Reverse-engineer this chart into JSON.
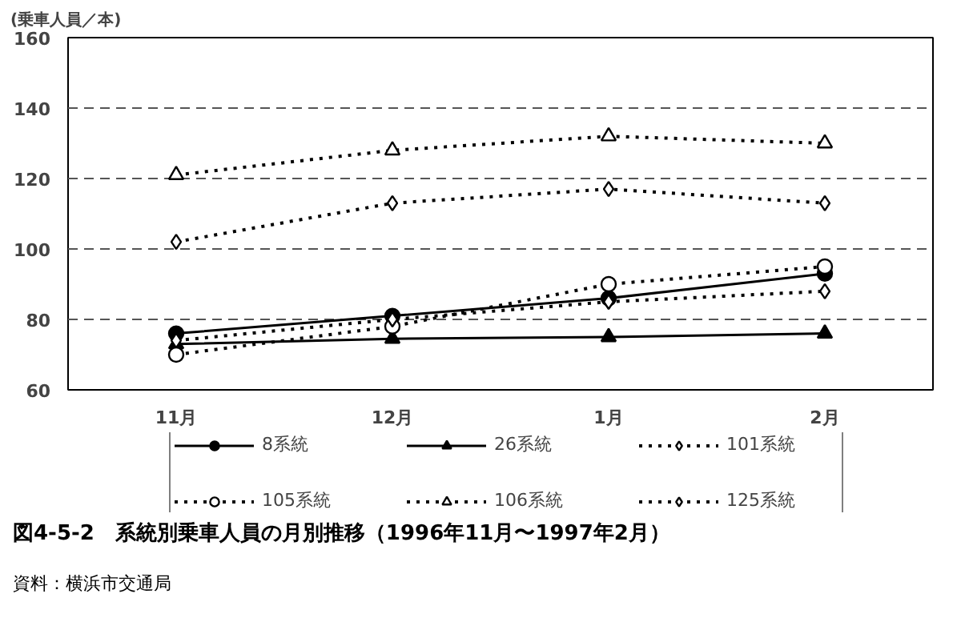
{
  "chart_data": {
    "type": "line",
    "title": "図4-5-2　系統別乗車人員の月別推移（1996年11月〜1997年2月）",
    "ylabel": "(乗車人員／本)",
    "annotations": [
      "資料：横浜市交通局"
    ],
    "categories": [
      "11月",
      "12月",
      "1月",
      "2月"
    ],
    "ylim": [
      60,
      160
    ],
    "yticks": [
      60,
      80,
      100,
      120,
      140,
      160
    ],
    "grid": "y",
    "legend": "bottom",
    "series": [
      {
        "name": "8系統",
        "color": "#000000",
        "marker": "circle",
        "line_style": "solid",
        "values": [
          76,
          81,
          86,
          93
        ]
      },
      {
        "name": "26系統",
        "color": "#000000",
        "marker": "triangle",
        "line_style": "solid",
        "values": [
          73,
          74.5,
          75,
          76
        ]
      },
      {
        "name": "101系統",
        "color": "#000000",
        "marker": "diamond",
        "line_style": "dotted",
        "values": [
          102,
          113,
          117,
          113
        ]
      },
      {
        "name": "105系統",
        "color": "#000000",
        "marker": "circle",
        "line_style": "dotted",
        "values": [
          70,
          78,
          90,
          95
        ]
      },
      {
        "name": "106系統",
        "color": "#000000",
        "marker": "triangle",
        "line_style": "dotted",
        "values": [
          121,
          128,
          132,
          130
        ]
      },
      {
        "name": "125系統",
        "color": "#000000",
        "marker": "diamond",
        "line_style": "dotted",
        "values": [
          74,
          80,
          85,
          88
        ]
      }
    ]
  }
}
